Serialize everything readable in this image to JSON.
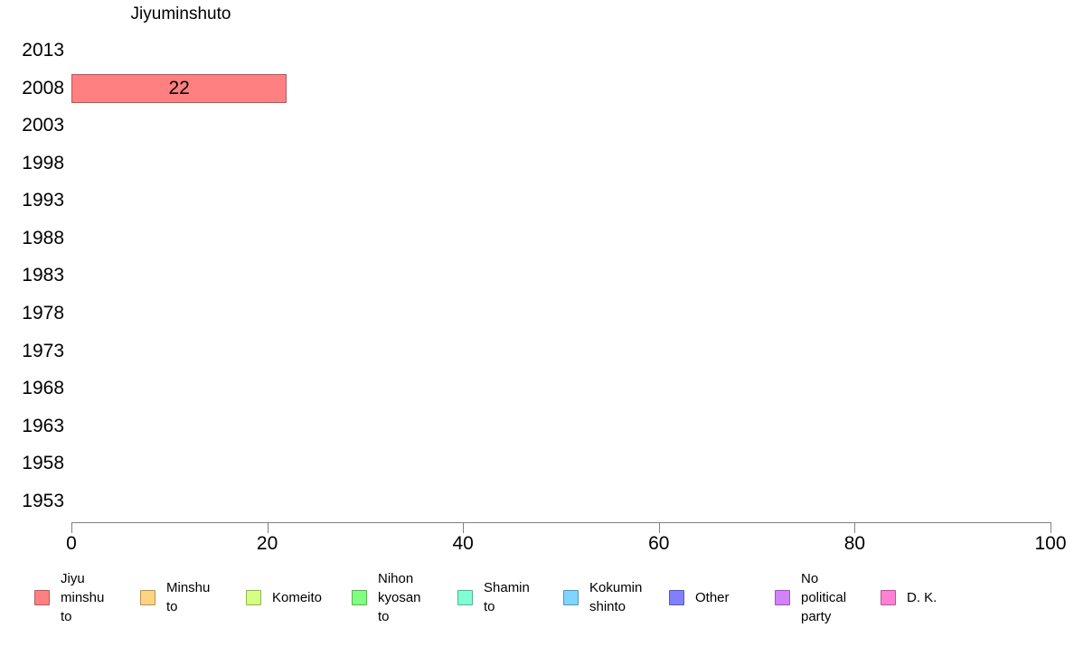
{
  "chart_data": {
    "type": "bar",
    "orientation": "horizontal",
    "title": "Jiyuminshuto",
    "categories": [
      "2013",
      "2008",
      "2003",
      "1998",
      "1993",
      "1988",
      "1983",
      "1978",
      "1973",
      "1968",
      "1963",
      "1958",
      "1953"
    ],
    "values": [
      null,
      22,
      null,
      null,
      null,
      null,
      null,
      null,
      null,
      null,
      null,
      null,
      null
    ],
    "bar_labels": [
      "",
      "22",
      "",
      "",
      "",
      "",
      "",
      "",
      "",
      "",
      "",
      "",
      ""
    ],
    "xlabel": "",
    "ylabel": "",
    "xlim": [
      0,
      100
    ],
    "xticks": [
      0,
      20,
      40,
      60,
      80,
      100
    ],
    "grid": false,
    "legend_position": "bottom",
    "bar_fill": "#FF8080",
    "bar_border": "#b25959",
    "axis_color": "#808080",
    "text_color": "#000000"
  },
  "legend": {
    "items": [
      {
        "label": "Jiyu\nminshu\nto",
        "fill": "#FF8080",
        "border": "#b25959"
      },
      {
        "label": "Minshu\nto",
        "fill": "#FFD480",
        "border": "#b29459"
      },
      {
        "label": "Komeito",
        "fill": "#D4FF80",
        "border": "#94b259"
      },
      {
        "label": "Nihon\nkyosan\nto",
        "fill": "#80FF80",
        "border": "#59b259"
      },
      {
        "label": "Shamin\nto",
        "fill": "#80FFD4",
        "border": "#59b294"
      },
      {
        "label": "Kokumin\nshinto",
        "fill": "#80D4FF",
        "border": "#5994b2"
      },
      {
        "label": "Other",
        "fill": "#8080FF",
        "border": "#5959b2"
      },
      {
        "label": "No\npolitical\nparty",
        "fill": "#D480FF",
        "border": "#9459b2"
      },
      {
        "label": "D. K.",
        "fill": "#FF80D4",
        "border": "#b25994"
      }
    ]
  }
}
